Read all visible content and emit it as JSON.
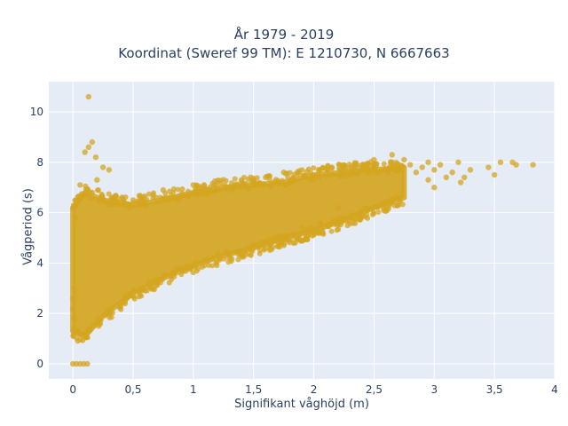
{
  "title": {
    "line1": "År 1979 - 2019",
    "line2": "Koordinat (Sweref 99 TM): E 1210730, N 6667663"
  },
  "chart_data": {
    "type": "scatter",
    "title": "År 1979 - 2019 / Koordinat (Sweref 99 TM): E 1210730, N 6667663",
    "xlabel": "Signifikant våghöjd (m)",
    "ylabel": "Vågperiod (s)",
    "xlim": [
      -0.2,
      4.0
    ],
    "ylim": [
      -0.6,
      11.2
    ],
    "x_ticks": [
      0,
      0.5,
      1,
      1.5,
      2,
      2.5,
      3,
      3.5,
      4
    ],
    "x_tick_labels": [
      "0",
      "0,5",
      "1",
      "1,5",
      "2",
      "2,5",
      "3",
      "3,5",
      "4"
    ],
    "y_ticks": [
      0,
      2,
      4,
      6,
      8,
      10
    ],
    "y_tick_labels": [
      "0",
      "2",
      "4",
      "6",
      "8",
      "10"
    ],
    "grid": true,
    "marker_color": "#D4A520",
    "background_color": "#E5ECF6",
    "series": [
      {
        "envelope_upper": [
          [
            0.0,
            6.2
          ],
          [
            0.1,
            6.8
          ],
          [
            0.25,
            6.5
          ],
          [
            0.5,
            6.3
          ],
          [
            0.75,
            6.5
          ],
          [
            1.0,
            6.8
          ],
          [
            1.25,
            7.0
          ],
          [
            1.5,
            7.1
          ],
          [
            1.75,
            7.2
          ],
          [
            2.0,
            7.5
          ],
          [
            2.25,
            7.6
          ],
          [
            2.5,
            7.7
          ],
          [
            2.75,
            7.8
          ]
        ],
        "envelope_lower": [
          [
            0.0,
            1.3
          ],
          [
            0.1,
            1.1
          ],
          [
            0.25,
            1.9
          ],
          [
            0.5,
            2.8
          ],
          [
            0.75,
            3.4
          ],
          [
            1.0,
            3.9
          ],
          [
            1.25,
            4.3
          ],
          [
            1.5,
            4.6
          ],
          [
            1.75,
            5.0
          ],
          [
            2.0,
            5.3
          ],
          [
            2.25,
            5.7
          ],
          [
            2.5,
            6.2
          ],
          [
            2.75,
            6.6
          ]
        ],
        "sparse_points": [
          [
            0.13,
            10.6
          ],
          [
            0.16,
            8.8
          ],
          [
            0.13,
            8.6
          ],
          [
            0.1,
            8.4
          ],
          [
            0.19,
            8.2
          ],
          [
            0.25,
            7.8
          ],
          [
            0.3,
            7.7
          ],
          [
            0.06,
            7.1
          ],
          [
            0.2,
            7.3
          ],
          [
            0.02,
            5.8
          ],
          [
            0.01,
            3.0
          ],
          [
            0.0,
            2.6
          ],
          [
            0.0,
            2.2
          ],
          [
            0.01,
            1.8
          ],
          [
            0.0,
            0.0
          ],
          [
            0.03,
            0.0
          ],
          [
            0.06,
            0.0
          ],
          [
            0.09,
            0.0
          ],
          [
            0.12,
            0.0
          ],
          [
            0.5,
            6.5
          ],
          [
            0.75,
            6.9
          ],
          [
            1.0,
            7.1
          ],
          [
            1.2,
            6.9
          ],
          [
            1.5,
            7.3
          ],
          [
            2.4,
            7.9
          ],
          [
            2.5,
            8.1
          ],
          [
            2.65,
            8.3
          ],
          [
            2.75,
            8.1
          ],
          [
            2.8,
            7.9
          ],
          [
            2.85,
            7.6
          ],
          [
            2.9,
            7.8
          ],
          [
            2.95,
            8.0
          ],
          [
            3.0,
            7.7
          ],
          [
            3.05,
            7.9
          ],
          [
            3.1,
            7.4
          ],
          [
            3.15,
            7.6
          ],
          [
            3.2,
            8.0
          ],
          [
            3.22,
            7.2
          ],
          [
            3.25,
            7.4
          ],
          [
            3.3,
            7.7
          ],
          [
            3.45,
            7.8
          ],
          [
            3.5,
            7.5
          ],
          [
            3.55,
            8.0
          ],
          [
            3.65,
            8.0
          ],
          [
            3.68,
            7.9
          ],
          [
            3.82,
            7.9
          ],
          [
            2.6,
            6.4
          ],
          [
            2.7,
            6.6
          ],
          [
            2.4,
            6.0
          ],
          [
            2.2,
            6.2
          ],
          [
            2.05,
            5.6
          ],
          [
            1.9,
            5.4
          ],
          [
            1.6,
            4.8
          ],
          [
            1.3,
            4.2
          ],
          [
            2.15,
            7.8
          ],
          [
            2.3,
            7.5
          ],
          [
            2.05,
            7.7
          ],
          [
            1.6,
            7.4
          ],
          [
            1.4,
            7.3
          ],
          [
            1.75,
            7.6
          ],
          [
            2.0,
            7.3
          ],
          [
            2.6,
            7.7
          ],
          [
            2.95,
            7.3
          ],
          [
            3.0,
            7.0
          ]
        ]
      }
    ]
  }
}
